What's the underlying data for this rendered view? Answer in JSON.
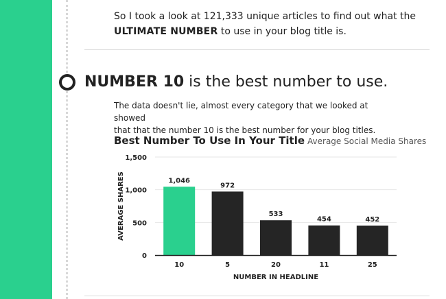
{
  "intro": {
    "line1": "So I took a look at 121,333 unique articles to find out what the",
    "line2_bold": "ULTIMATE NUMBER",
    "line2_rest": " to use in your blog title is."
  },
  "section": {
    "heading_bold": "NUMBER 10",
    "heading_rest": " is the best number to use.",
    "paragraph_line1": "The data doesn't lie, almost every category that we looked at showed",
    "paragraph_line2": "that that the number 10 is the best number for your blog titles."
  },
  "colors": {
    "accent": "#2ad08e",
    "bar_highlight": "#2ad08e",
    "bar_default": "#252525"
  },
  "chart_data": {
    "type": "bar",
    "title": "Best Number To Use In Your Title",
    "subtitle": "Average Social Media Shares",
    "xlabel": "NUMBER IN HEADLINE",
    "ylabel": "AVERAGE SHARES",
    "categories": [
      "10",
      "5",
      "20",
      "11",
      "25"
    ],
    "values": [
      1046,
      972,
      533,
      454,
      452
    ],
    "value_labels": [
      "1,046",
      "972",
      "533",
      "454",
      "452"
    ],
    "highlight_index": 0,
    "ylim": [
      0,
      1500
    ],
    "yticks": [
      0,
      500,
      1000,
      1500
    ],
    "ytick_labels": [
      "0",
      "500",
      "1,000",
      "1,500"
    ],
    "grid": true,
    "legend": "none"
  }
}
